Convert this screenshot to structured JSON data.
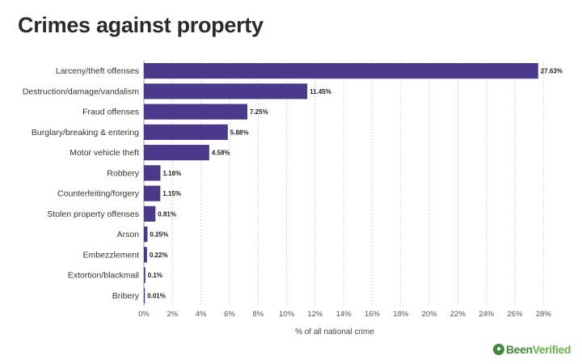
{
  "chart_data": {
    "type": "bar",
    "orientation": "horizontal",
    "title": "Crimes against property",
    "xlabel": "% of all national crime",
    "ylabel": "",
    "xlim": [
      0,
      29
    ],
    "xticks": [
      "0%",
      "2%",
      "4%",
      "6%",
      "8%",
      "10%",
      "12%",
      "14%",
      "16%",
      "18%",
      "20%",
      "22%",
      "24%",
      "26%",
      "28%"
    ],
    "xtick_values": [
      0,
      2,
      4,
      6,
      8,
      10,
      12,
      14,
      16,
      18,
      20,
      22,
      24,
      26,
      28
    ],
    "categories": [
      "Larceny/theft offenses",
      "Destruction/damage/vandalism",
      "Fraud offenses",
      "Burglary/breaking & entering",
      "Motor vehicle theft",
      "Robbery",
      "Counterfeiting/forgery",
      "Stolen property offenses",
      "Arson",
      "Embezzlement",
      "Extortion/blackmail",
      "Bribery"
    ],
    "values": [
      27.63,
      11.45,
      7.25,
      5.88,
      4.58,
      1.16,
      1.15,
      0.81,
      0.25,
      0.22,
      0.1,
      0.01
    ],
    "value_labels": [
      "27.63%",
      "11.45%",
      "7.25%",
      "5.88%",
      "4.58%",
      "1.16%",
      "1.15%",
      "0.81%",
      "0.25%",
      "0.22%",
      "0.1%",
      "0.01%"
    ],
    "bar_color": "#4b3a8c",
    "grid": true,
    "legend": "none"
  },
  "logo": {
    "part1": "Been",
    "part2": "Verified"
  }
}
